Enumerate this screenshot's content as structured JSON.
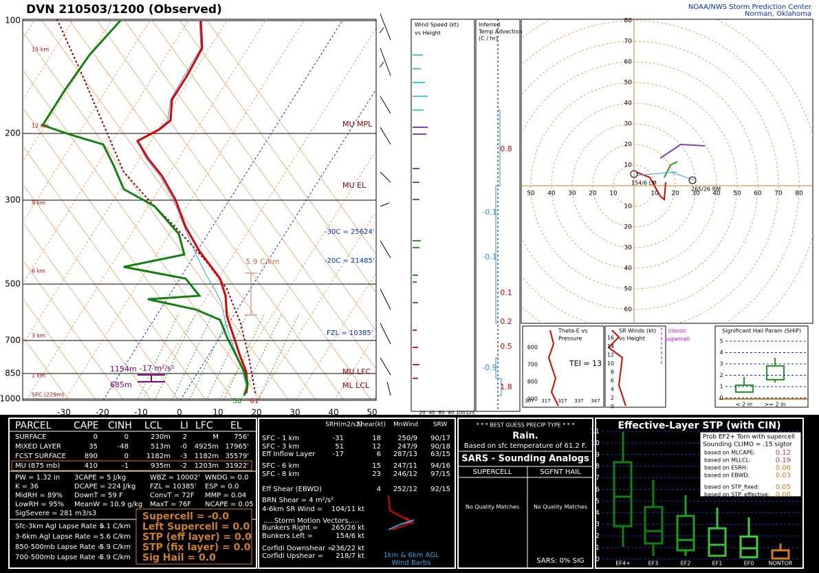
{
  "header": {
    "title": "DVN  210503/1200  (Observed)",
    "org": "NOAA/NWS Storm Prediction Center",
    "location": "Norman, Oklahoma"
  },
  "skewt": {
    "pressure_labels": [
      "100",
      "200",
      "300",
      "500",
      "700",
      "850",
      "1000"
    ],
    "temp_labels": [
      "-30",
      "-20",
      "-10",
      "0",
      "10",
      "20",
      "30",
      "40",
      "50"
    ],
    "height_labels": [
      "15 km",
      "12 km",
      "9 km",
      "6 km",
      "3 km",
      "1 km",
      "SFC (229m)"
    ],
    "annotations": [
      "MU MPL",
      "MU EL",
      "-30C = 25624'",
      "-20C = 21485'",
      "FZL = 10385'",
      "MU LFC",
      "ML LCL",
      "5.9 C/km",
      "1154m",
      "-17 m²/s²",
      "685m",
      "58",
      "61"
    ]
  },
  "wind_panel": {
    "title": [
      "Wind Speed (kt)",
      "vs Height"
    ],
    "ticks": [
      "20",
      "40",
      "60",
      "80",
      "100",
      "120"
    ]
  },
  "advection": {
    "title": [
      "Inferred",
      "Temp Advection",
      "(C / hr)"
    ],
    "values": [
      "0.8",
      "-0.1",
      "-0.1",
      "0.1",
      "0.2",
      "0.5",
      "-0.9",
      "1.8"
    ]
  },
  "hodograph": {
    "x_labels": [
      "50",
      "40",
      "30",
      "20",
      "10",
      "10",
      "20",
      "30",
      "40",
      "50",
      "60",
      "70",
      "80"
    ],
    "y_labels": [
      "80",
      "70",
      "60",
      "50",
      "40",
      "30",
      "20",
      "10",
      "10",
      "20",
      "30",
      "40",
      "50",
      "60"
    ],
    "motions": [
      "154/6 LM",
      "265/26 RM"
    ]
  },
  "theta_e": {
    "title": [
      "Theta-E vs",
      "Pressure"
    ],
    "y_labels": [
      "600",
      "700",
      "800",
      "900"
    ],
    "x_labels": [
      "307",
      "317",
      "327",
      "337",
      "347"
    ],
    "tei": "TEI = 13"
  },
  "sr_winds": {
    "title": [
      "SR Winds (kt)",
      "vs Height"
    ],
    "y_labels": [
      "16",
      "14",
      "12",
      "10",
      "8",
      "6",
      "4",
      "2",
      "0"
    ],
    "note": [
      "classic",
      "supercell"
    ]
  },
  "ship": {
    "title": "Significant Hail Param (SHIP)",
    "y_labels": [
      "5",
      "4",
      "3",
      "2",
      "1",
      "0"
    ],
    "x_labels": [
      "< 2 in",
      ">= 2 in"
    ]
  },
  "thermo": {
    "headers": [
      "PARCEL",
      "CAPE",
      "CINH",
      "LCL",
      "LI",
      "LFC",
      "EL"
    ],
    "rows": [
      [
        "SURFACE",
        "0",
        "0",
        "230m",
        "2",
        "M",
        "756'"
      ],
      [
        "MIXED LAYER",
        "35",
        "-48",
        "513m",
        "-0",
        "4925m",
        "17965'"
      ],
      [
        "FCST SURFACE",
        "890",
        "0",
        "1182m",
        "-3",
        "1182m",
        "35579'"
      ],
      [
        "MU  (875 mb)",
        "410",
        "-1",
        "935m",
        "-2",
        "1203m",
        "31922'"
      ]
    ]
  },
  "indices": [
    [
      "PW = 1.32 in",
      "3CAPE = 5 J/kg",
      "WBZ = 10002'",
      "WNDG = 0.0"
    ],
    [
      "K = 36",
      "DCAPE = 224 J/kg",
      "FZL = 10385'",
      "ESP = 0.0"
    ],
    [
      "MidRH = 89%",
      "DownT = 59 F",
      "ConvT = 72F",
      "MMP = 0.04"
    ],
    [
      "LowRH = 95%",
      "MeanW = 10.9 g/kg",
      "MaxT = 76F",
      "NCAPE = 0.05"
    ]
  ],
  "sigsevere": "SigSevere = 281 m3/s3",
  "lapse_rates": [
    [
      "Sfc-3km Agl Lapse Rate =",
      "5.1 C/km"
    ],
    [
      "3-6km Agl Lapse Rate =",
      "5.6 C/km"
    ],
    [
      "850-500mb Lapse Rate =",
      "5.9 C/km"
    ],
    [
      "700-500mb Lapse Rate =",
      "5.9 C/km"
    ]
  ],
  "composite": [
    "Supercell = -0.0",
    "Left Supercell = 0.0",
    "STP (eff layer) = 0.0",
    "STP (fix layer) = 0.0",
    "Sig Hail = 0.0"
  ],
  "kinematics": {
    "headers": [
      "SRH(m2/s2)",
      "Shear(kt)",
      "MnWind",
      "SRW"
    ],
    "rows": [
      {
        "label": "SFC - 1 km",
        "srh": "-31",
        "shear": "18",
        "mnwind": "250/9",
        "srw": "90/17"
      },
      {
        "label": "SFC - 3 km",
        "srh": "51",
        "shear": "12",
        "mnwind": "247/9",
        "srw": "90/18"
      },
      {
        "label": "Eff Inflow Layer",
        "srh": "-17",
        "shear": "6",
        "mnwind": "287/13",
        "srw": "63/15"
      },
      {
        "label": "SFC - 6 km",
        "shear": "15",
        "mnwind": "247/11",
        "srw": "94/16"
      },
      {
        "label": "SFC - 8 km",
        "shear": "23",
        "mnwind": "246/12",
        "srw": "97/15"
      },
      {
        "label": "Eff Shear (EBWD)",
        "shear": "4",
        "mnwind": "252/12",
        "srw": "92/15"
      }
    ],
    "brn": "BRN Shear = 4 m²/s²",
    "sr_wind": [
      "4-6km SR Wind =",
      "104/11 kt"
    ],
    "storm_title": ".....Storm Motion Vectors.....",
    "storm": [
      [
        "Bunkers Right =",
        "265/26 kt"
      ],
      [
        "Bunkers Left =",
        "154/6 kt"
      ],
      [
        "Corfidi Downshear =",
        "236/22 kt"
      ],
      [
        "Corfidi Upshear =",
        "218/7 kt"
      ]
    ],
    "barb_note": [
      "1km & 6km AGL",
      "Wind Barbs"
    ]
  },
  "precip": {
    "title": "* * * BEST GUESS PRECIP TYPE * * *",
    "type": "Rain.",
    "basis": "Based on sfc temperature of 61.2 F."
  },
  "sars": {
    "title": "SARS - Sounding Analogs",
    "columns": [
      "SUPERCELL",
      "SGFNT HAIL"
    ],
    "matches": [
      "No Quality Matches",
      "No Quality Matches"
    ],
    "sig": "SARS:  0% SIG"
  },
  "stp": {
    "title": "Effective-Layer STP (with CIN)",
    "y_labels": [
      "11",
      "10",
      "9",
      "8",
      "7",
      "6",
      "5",
      "4",
      "3",
      "2",
      "1",
      "0"
    ],
    "x_labels": [
      "EF4+",
      "EF3",
      "EF2",
      "EF1",
      "EF0",
      "NONTOR"
    ],
    "prob_title": [
      "Prob EF2+ Torn with supercell",
      "Sounding CLIMO = .15 sigtor"
    ],
    "probs": [
      [
        "based on MLCAPE:",
        "0.12"
      ],
      [
        "based on MLLCL:",
        "0.19"
      ],
      [
        "based on ESRH:",
        "0.06"
      ],
      [
        "based on EBWD:",
        "0.03"
      ],
      [
        "based on STP_fixed:",
        "0.05"
      ],
      [
        "based on STP_effective:",
        "0.06"
      ]
    ]
  }
}
